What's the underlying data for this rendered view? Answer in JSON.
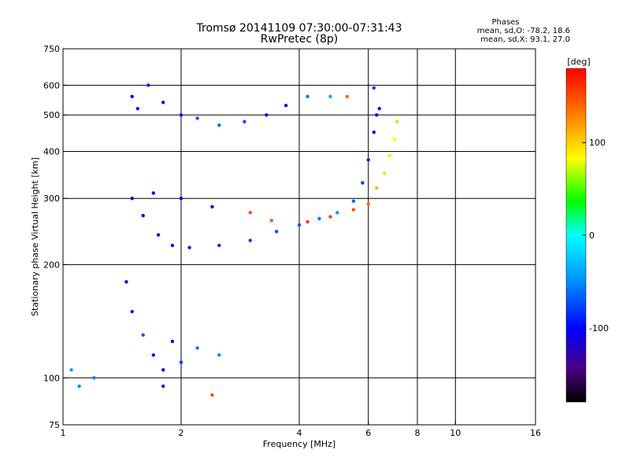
{
  "chart_data": {
    "type": "scatter",
    "title": "Tromsø 20141109 07:30:00-07:31:43",
    "subtitle": "RwPretec (8p)",
    "xlabel": "Frequency [MHz]",
    "ylabel": "Stationary phase Virtual Height [km]",
    "x_scale": "log",
    "y_scale": "log",
    "xlim": [
      1,
      16
    ],
    "ylim": [
      75,
      750
    ],
    "x_ticks": [
      1,
      2,
      4,
      6,
      8,
      10,
      16
    ],
    "x_tick_labels": [
      "1",
      "2",
      "4",
      "6",
      "8",
      "10",
      "16"
    ],
    "y_ticks": [
      75,
      100,
      200,
      300,
      400,
      500,
      600,
      750
    ],
    "y_tick_labels": [
      "75",
      "100",
      "200",
      "300",
      "400",
      "500",
      "600",
      "750"
    ],
    "grid": true,
    "stats": {
      "heading": "Phases",
      "o_line": "mean, sd,O: -78.2, 18.6",
      "x_line": "mean, sd,X:  93.1, 27.0"
    },
    "colorbar": {
      "label": "[deg]",
      "range": [
        -180,
        180
      ],
      "ticks": [
        100,
        0,
        -100
      ],
      "tick_labels": [
        "100",
        "0",
        "-100"
      ]
    },
    "series": [
      {
        "values": [
          {
            "x": 1.5,
            "y": 560,
            "phase": -100
          },
          {
            "x": 1.55,
            "y": 520,
            "phase": -95
          },
          {
            "x": 1.65,
            "y": 600,
            "phase": -90
          },
          {
            "x": 1.8,
            "y": 540,
            "phase": -110
          },
          {
            "x": 2.0,
            "y": 500,
            "phase": -95
          },
          {
            "x": 2.2,
            "y": 490,
            "phase": -70
          },
          {
            "x": 2.5,
            "y": 470,
            "phase": -60
          },
          {
            "x": 2.9,
            "y": 480,
            "phase": -75
          },
          {
            "x": 3.3,
            "y": 500,
            "phase": -105
          },
          {
            "x": 3.7,
            "y": 530,
            "phase": -95
          },
          {
            "x": 4.2,
            "y": 560,
            "phase": -60
          },
          {
            "x": 4.8,
            "y": 560,
            "phase": -40
          },
          {
            "x": 5.3,
            "y": 560,
            "phase": 140
          },
          {
            "x": 6.2,
            "y": 590,
            "phase": -80
          },
          {
            "x": 6.3,
            "y": 500,
            "phase": -95
          }
        ]
      },
      {
        "values": [
          {
            "x": 1.5,
            "y": 300,
            "phase": -110
          },
          {
            "x": 1.6,
            "y": 270,
            "phase": -105
          },
          {
            "x": 1.75,
            "y": 240,
            "phase": -100
          },
          {
            "x": 1.9,
            "y": 225,
            "phase": -95
          },
          {
            "x": 2.1,
            "y": 222,
            "phase": -90
          },
          {
            "x": 2.5,
            "y": 225,
            "phase": -85
          },
          {
            "x": 3.0,
            "y": 232,
            "phase": -80
          },
          {
            "x": 3.5,
            "y": 245,
            "phase": -75
          },
          {
            "x": 4.0,
            "y": 255,
            "phase": -70
          },
          {
            "x": 4.5,
            "y": 265,
            "phase": -60
          },
          {
            "x": 5.0,
            "y": 275,
            "phase": -50
          },
          {
            "x": 5.5,
            "y": 295,
            "phase": -65
          },
          {
            "x": 5.8,
            "y": 330,
            "phase": -80
          },
          {
            "x": 6.0,
            "y": 380,
            "phase": -90
          },
          {
            "x": 6.2,
            "y": 450,
            "phase": -100
          },
          {
            "x": 6.4,
            "y": 520,
            "phase": -105
          },
          {
            "x": 1.7,
            "y": 310,
            "phase": -105
          },
          {
            "x": 2.0,
            "y": 300,
            "phase": -100
          },
          {
            "x": 2.4,
            "y": 285,
            "phase": -110
          }
        ]
      },
      {
        "values": [
          {
            "x": 3.0,
            "y": 275,
            "phase": 150
          },
          {
            "x": 3.4,
            "y": 262,
            "phase": 145
          },
          {
            "x": 4.2,
            "y": 260,
            "phase": 160
          },
          {
            "x": 4.8,
            "y": 268,
            "phase": 155
          },
          {
            "x": 5.5,
            "y": 280,
            "phase": 150
          },
          {
            "x": 6.0,
            "y": 290,
            "phase": 140
          },
          {
            "x": 6.3,
            "y": 320,
            "phase": 110
          },
          {
            "x": 6.6,
            "y": 350,
            "phase": 95
          },
          {
            "x": 6.8,
            "y": 390,
            "phase": 90
          },
          {
            "x": 7.0,
            "y": 430,
            "phase": 80
          },
          {
            "x": 7.1,
            "y": 480,
            "phase": 100
          }
        ]
      },
      {
        "values": [
          {
            "x": 1.45,
            "y": 180,
            "phase": -110
          },
          {
            "x": 1.5,
            "y": 150,
            "phase": -90
          },
          {
            "x": 1.6,
            "y": 130,
            "phase": -70
          },
          {
            "x": 1.7,
            "y": 115,
            "phase": -95
          },
          {
            "x": 1.8,
            "y": 105,
            "phase": -110
          },
          {
            "x": 1.9,
            "y": 125,
            "phase": -120
          },
          {
            "x": 2.0,
            "y": 110,
            "phase": -80
          },
          {
            "x": 2.2,
            "y": 120,
            "phase": -60
          },
          {
            "x": 2.5,
            "y": 115,
            "phase": -50
          },
          {
            "x": 1.05,
            "y": 105,
            "phase": -40
          },
          {
            "x": 1.1,
            "y": 95,
            "phase": -50
          },
          {
            "x": 1.2,
            "y": 100,
            "phase": -55
          },
          {
            "x": 1.8,
            "y": 95,
            "phase": -90
          },
          {
            "x": 2.4,
            "y": 90,
            "phase": 150
          }
        ]
      }
    ]
  }
}
